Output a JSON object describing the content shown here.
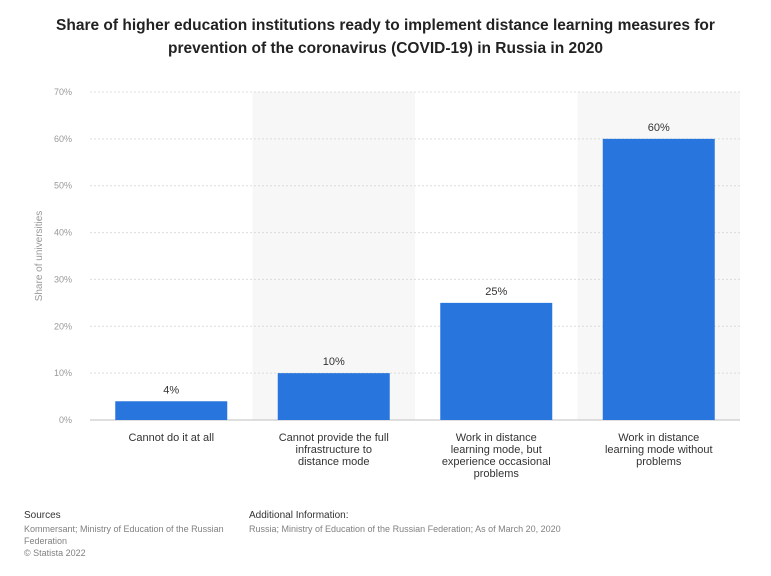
{
  "title": "Share of higher education institutions ready to implement distance learning measures for prevention of the coronavirus (COVID-19) in Russia in 2020",
  "chart_data": {
    "type": "bar",
    "categories": [
      "Cannot do it at all",
      "Cannot provide the full infrastructure to distance mode",
      "Work in distance learning mode, but experience occasional problems",
      "Work in distance learning mode without problems"
    ],
    "values": [
      4,
      10,
      25,
      60
    ],
    "value_labels": [
      "4%",
      "10%",
      "25%",
      "60%"
    ],
    "ylabel": "Share of universities",
    "ylim": [
      0,
      70
    ],
    "yticks": [
      0,
      10,
      20,
      30,
      40,
      50,
      60,
      70
    ],
    "ytick_labels": [
      "0%",
      "10%",
      "20%",
      "30%",
      "40%",
      "50%",
      "60%",
      "70%"
    ],
    "grid": true,
    "bar_color": "#2876dd",
    "band_color": "#f7f7f7"
  },
  "footer": {
    "sources_heading": "Sources",
    "sources_text": "Kommersant; Ministry of Education of the Russian Federation",
    "copyright": "© Statista 2022",
    "additional_heading": "Additional Information:",
    "additional_text": "Russia; Ministry of Education of the Russian Federation; As of March 20, 2020"
  }
}
